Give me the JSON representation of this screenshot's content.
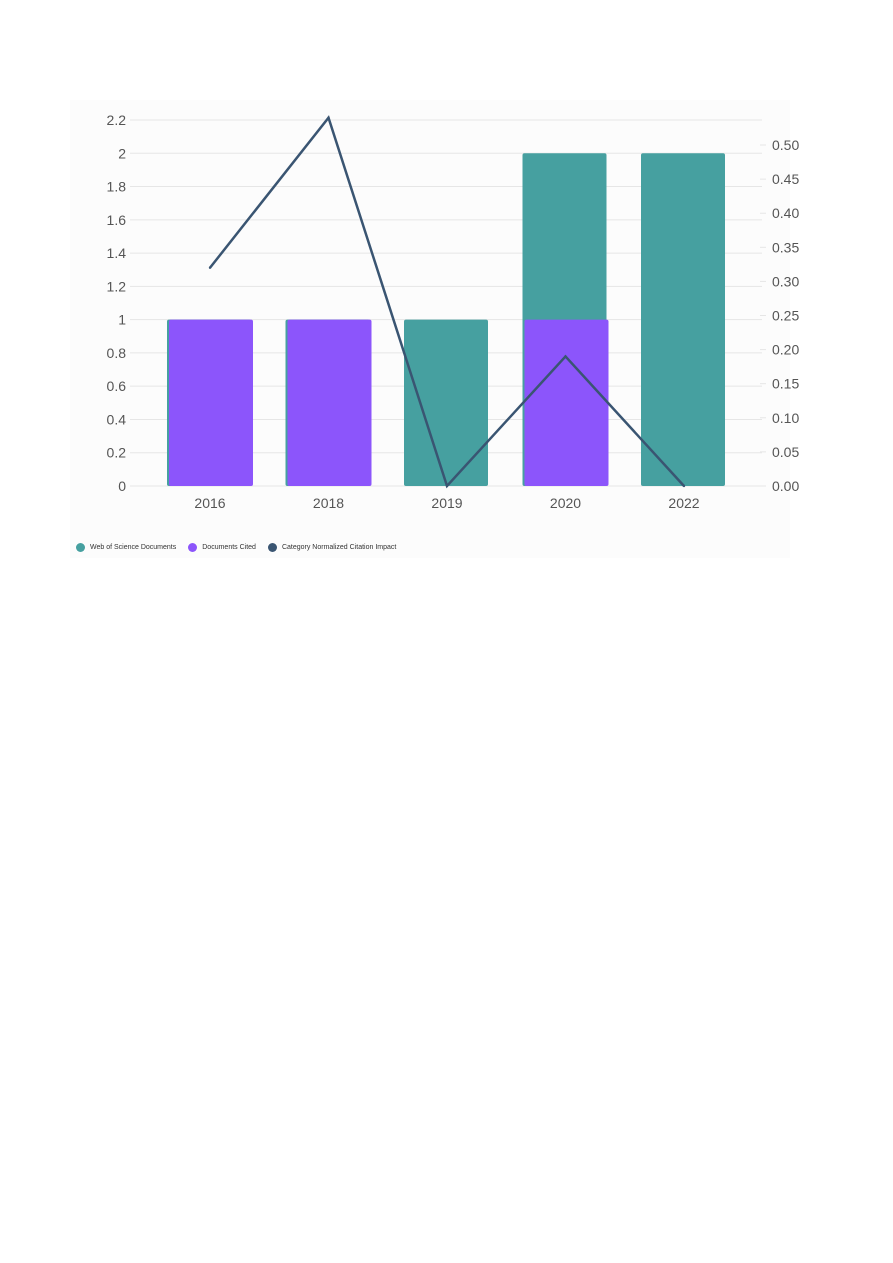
{
  "chart_data": {
    "type": "bar",
    "categories": [
      "2016",
      "2018",
      "2019",
      "2020",
      "2022"
    ],
    "series": [
      {
        "name": "Web of Science Documents",
        "type": "bar",
        "axis": "left",
        "color": "#46a0a0",
        "values": [
          1,
          1,
          1,
          2,
          2
        ]
      },
      {
        "name": "Documents Cited",
        "type": "bar",
        "axis": "left",
        "color": "#8c55fb",
        "values": [
          1,
          1,
          0,
          1,
          0
        ]
      },
      {
        "name": "Category Normalized Citation Impact",
        "type": "line",
        "axis": "right",
        "color": "#3a5572",
        "values": [
          0.32,
          0.54,
          0.0,
          0.19,
          0.0
        ]
      }
    ],
    "y_left": {
      "min": 0,
      "max": 2.2,
      "ticks": [
        "0",
        "0.2",
        "0.4",
        "0.6",
        "0.8",
        "1",
        "1.2",
        "1.4",
        "1.6",
        "1.8",
        "2",
        "2.2"
      ]
    },
    "y_right": {
      "min": 0,
      "max": 0.5,
      "ticks": [
        "0.00",
        "0.05",
        "0.10",
        "0.15",
        "0.20",
        "0.25",
        "0.30",
        "0.35",
        "0.40",
        "0.45",
        "0.50"
      ]
    },
    "grid": true,
    "legend_position": "bottom-left"
  }
}
